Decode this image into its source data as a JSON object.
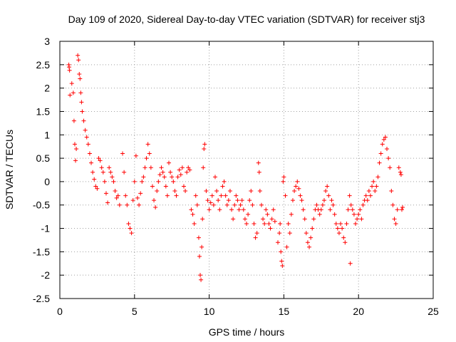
{
  "chart_data": {
    "type": "scatter",
    "title": "Day 109 of 2020, Sidereal Day-to-day VTEC variation (SDTVAR) for receiver stj3",
    "xlabel": "GPS time / hours",
    "ylabel": "SDTVAR / TECUs",
    "xlim": [
      0,
      25
    ],
    "ylim": [
      -2.5,
      3
    ],
    "xticks": [
      0,
      5,
      10,
      15,
      20,
      25
    ],
    "yticks": [
      -2.5,
      -2,
      -1.5,
      -1,
      -0.5,
      0,
      0.5,
      1,
      1.5,
      2,
      2.5,
      3
    ],
    "xtick_labels": [
      "0",
      "5",
      "10",
      "15",
      "20",
      "25"
    ],
    "ytick_labels": [
      "-2.5",
      "-2",
      "-1.5",
      "-1",
      "-0.5",
      "0",
      "0.5",
      "1",
      "1.5",
      "2",
      "2.5",
      "3"
    ],
    "grid": true,
    "marker": "+",
    "color": "#ff0000",
    "series": [
      {
        "name": "SDTVAR",
        "points": [
          [
            0.6,
            2.5
          ],
          [
            0.62,
            2.45
          ],
          [
            0.65,
            2.38
          ],
          [
            0.68,
            1.85
          ],
          [
            0.8,
            2.1
          ],
          [
            0.9,
            1.9
          ],
          [
            0.95,
            1.3
          ],
          [
            1.0,
            0.8
          ],
          [
            1.05,
            0.45
          ],
          [
            1.1,
            0.7
          ],
          [
            1.2,
            2.7
          ],
          [
            1.25,
            2.6
          ],
          [
            1.3,
            2.3
          ],
          [
            1.35,
            2.2
          ],
          [
            1.4,
            1.9
          ],
          [
            1.45,
            1.7
          ],
          [
            1.5,
            1.5
          ],
          [
            1.6,
            1.3
          ],
          [
            1.7,
            1.1
          ],
          [
            1.8,
            0.95
          ],
          [
            1.9,
            0.8
          ],
          [
            2.0,
            0.6
          ],
          [
            2.1,
            0.4
          ],
          [
            2.2,
            0.2
          ],
          [
            2.3,
            0.05
          ],
          [
            2.4,
            -0.1
          ],
          [
            2.5,
            -0.15
          ],
          [
            2.6,
            0.5
          ],
          [
            2.7,
            0.45
          ],
          [
            2.8,
            0.3
          ],
          [
            2.9,
            0.2
          ],
          [
            3.0,
            0.0
          ],
          [
            3.1,
            -0.25
          ],
          [
            3.2,
            -0.45
          ],
          [
            3.3,
            0.3
          ],
          [
            3.4,
            0.2
          ],
          [
            3.5,
            0.1
          ],
          [
            3.6,
            0.0
          ],
          [
            3.7,
            -0.2
          ],
          [
            3.8,
            -0.35
          ],
          [
            3.9,
            -0.3
          ],
          [
            4.0,
            -0.5
          ],
          [
            4.2,
            0.6
          ],
          [
            4.3,
            0.2
          ],
          [
            4.4,
            -0.3
          ],
          [
            4.5,
            -0.5
          ],
          [
            4.6,
            -0.9
          ],
          [
            4.7,
            -1.0
          ],
          [
            4.8,
            -1.1
          ],
          [
            4.9,
            -0.4
          ],
          [
            5.0,
            0.0
          ],
          [
            5.1,
            0.55
          ],
          [
            5.2,
            -0.35
          ],
          [
            5.3,
            -0.5
          ],
          [
            5.4,
            -0.25
          ],
          [
            5.5,
            0.0
          ],
          [
            5.6,
            0.1
          ],
          [
            5.7,
            0.3
          ],
          [
            5.8,
            0.5
          ],
          [
            5.9,
            0.8
          ],
          [
            6.0,
            0.6
          ],
          [
            6.1,
            0.3
          ],
          [
            6.2,
            -0.1
          ],
          [
            6.3,
            -0.4
          ],
          [
            6.4,
            -0.55
          ],
          [
            6.5,
            -0.2
          ],
          [
            6.6,
            0.0
          ],
          [
            6.7,
            0.15
          ],
          [
            6.8,
            0.3
          ],
          [
            6.9,
            0.2
          ],
          [
            7.0,
            0.1
          ],
          [
            7.1,
            -0.1
          ],
          [
            7.2,
            -0.3
          ],
          [
            7.3,
            0.4
          ],
          [
            7.4,
            0.2
          ],
          [
            7.5,
            0.1
          ],
          [
            7.6,
            0.0
          ],
          [
            7.7,
            -0.2
          ],
          [
            7.8,
            -0.3
          ],
          [
            7.9,
            0.1
          ],
          [
            8.0,
            0.25
          ],
          [
            8.1,
            0.15
          ],
          [
            8.2,
            0.3
          ],
          [
            8.3,
            -0.1
          ],
          [
            8.4,
            -0.2
          ],
          [
            8.5,
            0.2
          ],
          [
            8.6,
            0.3
          ],
          [
            8.7,
            0.25
          ],
          [
            8.8,
            -0.6
          ],
          [
            8.9,
            -0.7
          ],
          [
            9.0,
            -0.9
          ],
          [
            9.1,
            -0.3
          ],
          [
            9.2,
            -0.5
          ],
          [
            9.3,
            -1.2
          ],
          [
            9.35,
            -1.6
          ],
          [
            9.4,
            -2.0
          ],
          [
            9.45,
            -2.1
          ],
          [
            9.5,
            -1.4
          ],
          [
            9.55,
            -0.8
          ],
          [
            9.6,
            0.3
          ],
          [
            9.65,
            0.7
          ],
          [
            9.7,
            0.8
          ],
          [
            9.8,
            -0.2
          ],
          [
            9.9,
            -0.4
          ],
          [
            10.0,
            -0.6
          ],
          [
            10.1,
            -0.45
          ],
          [
            10.2,
            -0.3
          ],
          [
            10.3,
            -0.5
          ],
          [
            10.4,
            0.1
          ],
          [
            10.5,
            -0.2
          ],
          [
            10.6,
            -0.4
          ],
          [
            10.7,
            -0.6
          ],
          [
            10.8,
            -0.3
          ],
          [
            10.9,
            -0.1
          ],
          [
            11.0,
            0.0
          ],
          [
            11.1,
            -0.3
          ],
          [
            11.2,
            -0.5
          ],
          [
            11.3,
            -0.4
          ],
          [
            11.4,
            -0.2
          ],
          [
            11.5,
            -0.6
          ],
          [
            11.6,
            -0.8
          ],
          [
            11.7,
            -0.5
          ],
          [
            11.8,
            -0.3
          ],
          [
            11.9,
            -0.4
          ],
          [
            12.0,
            -0.6
          ],
          [
            12.1,
            -0.5
          ],
          [
            12.2,
            -0.4
          ],
          [
            12.3,
            -0.6
          ],
          [
            12.4,
            -0.8
          ],
          [
            12.5,
            -0.9
          ],
          [
            12.6,
            -0.7
          ],
          [
            12.7,
            -0.4
          ],
          [
            12.8,
            -0.2
          ],
          [
            12.9,
            -0.5
          ],
          [
            13.0,
            -0.9
          ],
          [
            13.1,
            -1.2
          ],
          [
            13.2,
            -1.1
          ],
          [
            13.3,
            0.4
          ],
          [
            13.35,
            0.2
          ],
          [
            13.4,
            -0.2
          ],
          [
            13.5,
            -0.5
          ],
          [
            13.6,
            -0.8
          ],
          [
            13.7,
            -0.9
          ],
          [
            13.8,
            -0.6
          ],
          [
            13.9,
            -0.7
          ],
          [
            14.0,
            -0.9
          ],
          [
            14.1,
            -1.0
          ],
          [
            14.2,
            -0.8
          ],
          [
            14.3,
            -0.6
          ],
          [
            14.4,
            -0.85
          ],
          [
            14.6,
            -1.3
          ],
          [
            14.7,
            -1.1
          ],
          [
            14.75,
            -0.9
          ],
          [
            14.8,
            -1.5
          ],
          [
            14.85,
            -1.7
          ],
          [
            14.9,
            -1.8
          ],
          [
            14.95,
            0.0
          ],
          [
            15.0,
            0.1
          ],
          [
            15.1,
            -0.3
          ],
          [
            15.2,
            -1.4
          ],
          [
            15.3,
            -0.9
          ],
          [
            15.4,
            -1.1
          ],
          [
            15.5,
            -0.7
          ],
          [
            15.6,
            -0.4
          ],
          [
            15.7,
            -0.2
          ],
          [
            15.8,
            -0.1
          ],
          [
            15.9,
            0.0
          ],
          [
            16.0,
            -0.15
          ],
          [
            16.1,
            -0.3
          ],
          [
            16.2,
            -0.4
          ],
          [
            16.3,
            -0.6
          ],
          [
            16.4,
            -0.8
          ],
          [
            16.5,
            -1.1
          ],
          [
            16.6,
            -1.3
          ],
          [
            16.7,
            -1.4
          ],
          [
            16.8,
            -1.2
          ],
          [
            16.9,
            -1.0
          ],
          [
            17.0,
            -0.8
          ],
          [
            17.1,
            -0.6
          ],
          [
            17.2,
            -0.5
          ],
          [
            17.3,
            -0.6
          ],
          [
            17.4,
            -0.7
          ],
          [
            17.5,
            -0.6
          ],
          [
            17.6,
            -0.5
          ],
          [
            17.7,
            -0.4
          ],
          [
            17.8,
            -0.2
          ],
          [
            17.9,
            -0.1
          ],
          [
            18.0,
            -0.3
          ],
          [
            18.1,
            -0.6
          ],
          [
            18.2,
            -0.4
          ],
          [
            18.3,
            -0.5
          ],
          [
            18.4,
            -0.7
          ],
          [
            18.5,
            -0.9
          ],
          [
            18.6,
            -1.0
          ],
          [
            18.7,
            -1.1
          ],
          [
            18.8,
            -0.9
          ],
          [
            18.9,
            -1.0
          ],
          [
            19.0,
            -1.2
          ],
          [
            19.1,
            -1.3
          ],
          [
            19.2,
            -0.9
          ],
          [
            19.3,
            -0.6
          ],
          [
            19.4,
            -0.3
          ],
          [
            19.45,
            -1.75
          ],
          [
            19.5,
            -0.5
          ],
          [
            19.6,
            -0.6
          ],
          [
            19.7,
            -0.7
          ],
          [
            19.8,
            -0.9
          ],
          [
            19.9,
            -0.8
          ],
          [
            20.0,
            -0.7
          ],
          [
            20.1,
            -0.6
          ],
          [
            20.2,
            -0.8
          ],
          [
            20.3,
            -0.5
          ],
          [
            20.4,
            -0.4
          ],
          [
            20.5,
            -0.3
          ],
          [
            20.6,
            -0.4
          ],
          [
            20.7,
            -0.2
          ],
          [
            20.8,
            -0.3
          ],
          [
            20.9,
            -0.1
          ],
          [
            21.0,
            0.0
          ],
          [
            21.1,
            -0.2
          ],
          [
            21.2,
            -0.1
          ],
          [
            21.3,
            0.1
          ],
          [
            21.4,
            0.4
          ],
          [
            21.5,
            0.6
          ],
          [
            21.6,
            0.8
          ],
          [
            21.7,
            0.9
          ],
          [
            21.8,
            0.95
          ],
          [
            21.9,
            0.7
          ],
          [
            22.0,
            0.5
          ],
          [
            22.1,
            0.3
          ],
          [
            22.2,
            -0.2
          ],
          [
            22.3,
            -0.5
          ],
          [
            22.4,
            -0.8
          ],
          [
            22.5,
            -0.9
          ],
          [
            22.6,
            -0.6
          ],
          [
            22.7,
            0.3
          ],
          [
            22.8,
            0.2
          ],
          [
            22.85,
            0.15
          ],
          [
            22.9,
            -0.6
          ],
          [
            22.95,
            -0.55
          ]
        ]
      }
    ]
  }
}
